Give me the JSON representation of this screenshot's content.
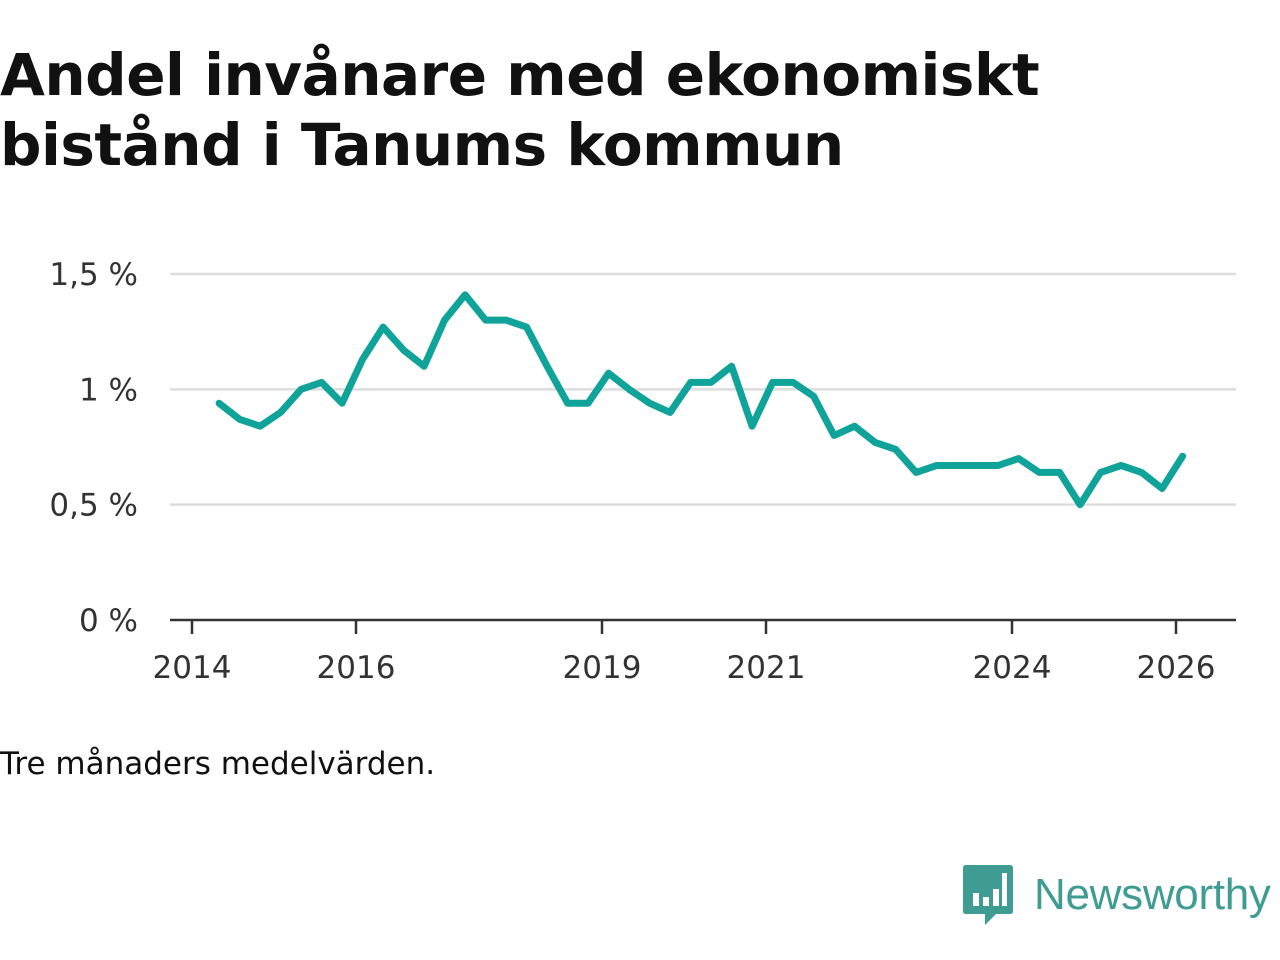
{
  "title": "Andel invånare med ekonomiskt bistånd i Tanums kommun",
  "note": "Tre månaders medelvärden.",
  "brand": {
    "name": "Newsworthy",
    "icon": "newsworthy-logo-icon"
  },
  "colors": {
    "line": "#0fa39a",
    "grid": "#dddddd",
    "axis": "#333333",
    "text": "#333333",
    "brand": "#3f9c92"
  },
  "chart_data": {
    "type": "line",
    "title": "Andel invånare med ekonomiskt bistånd i Tanums kommun",
    "xlabel": "",
    "ylabel": "",
    "xlim": [
      2013.8,
      2026.7
    ],
    "ylim": [
      0,
      1.5
    ],
    "grid": true,
    "y_ticks": [
      0,
      0.5,
      1,
      1.5
    ],
    "y_tick_labels": [
      "0 %",
      "0,5 %",
      "1 %",
      "1,5 %"
    ],
    "x_ticks": [
      2014,
      2016,
      2019,
      2021,
      2024,
      2026
    ],
    "x_tick_labels": [
      "2014",
      "2016",
      "2019",
      "2021",
      "2024",
      "2026"
    ],
    "series": [
      {
        "name": "Andel invånare med ekonomiskt bistånd",
        "x": [
          2014.33,
          2014.58,
          2014.83,
          2015.08,
          2015.33,
          2015.58,
          2015.83,
          2016.08,
          2016.33,
          2016.58,
          2016.83,
          2017.08,
          2017.33,
          2017.58,
          2017.83,
          2018.08,
          2018.33,
          2018.58,
          2018.83,
          2019.08,
          2019.33,
          2019.58,
          2019.83,
          2020.08,
          2020.33,
          2020.58,
          2020.83,
          2021.08,
          2021.33,
          2021.58,
          2021.83,
          2022.08,
          2022.33,
          2022.58,
          2022.83,
          2023.08,
          2023.33,
          2023.58,
          2023.83,
          2024.08,
          2024.33,
          2024.58,
          2024.83,
          2025.08,
          2025.33,
          2025.58,
          2025.83,
          2026.08
        ],
        "values": [
          0.94,
          0.87,
          0.84,
          0.9,
          1.0,
          1.03,
          0.94,
          1.13,
          1.27,
          1.17,
          1.1,
          1.3,
          1.41,
          1.3,
          1.3,
          1.27,
          1.1,
          0.94,
          0.94,
          1.07,
          1.0,
          0.94,
          0.9,
          1.03,
          1.03,
          1.1,
          0.84,
          1.03,
          1.03,
          0.97,
          0.8,
          0.84,
          0.77,
          0.74,
          0.64,
          0.67,
          0.67,
          0.67,
          0.67,
          0.7,
          0.64,
          0.64,
          0.5,
          0.64,
          0.67,
          0.64,
          0.57,
          0.71
        ]
      }
    ]
  }
}
